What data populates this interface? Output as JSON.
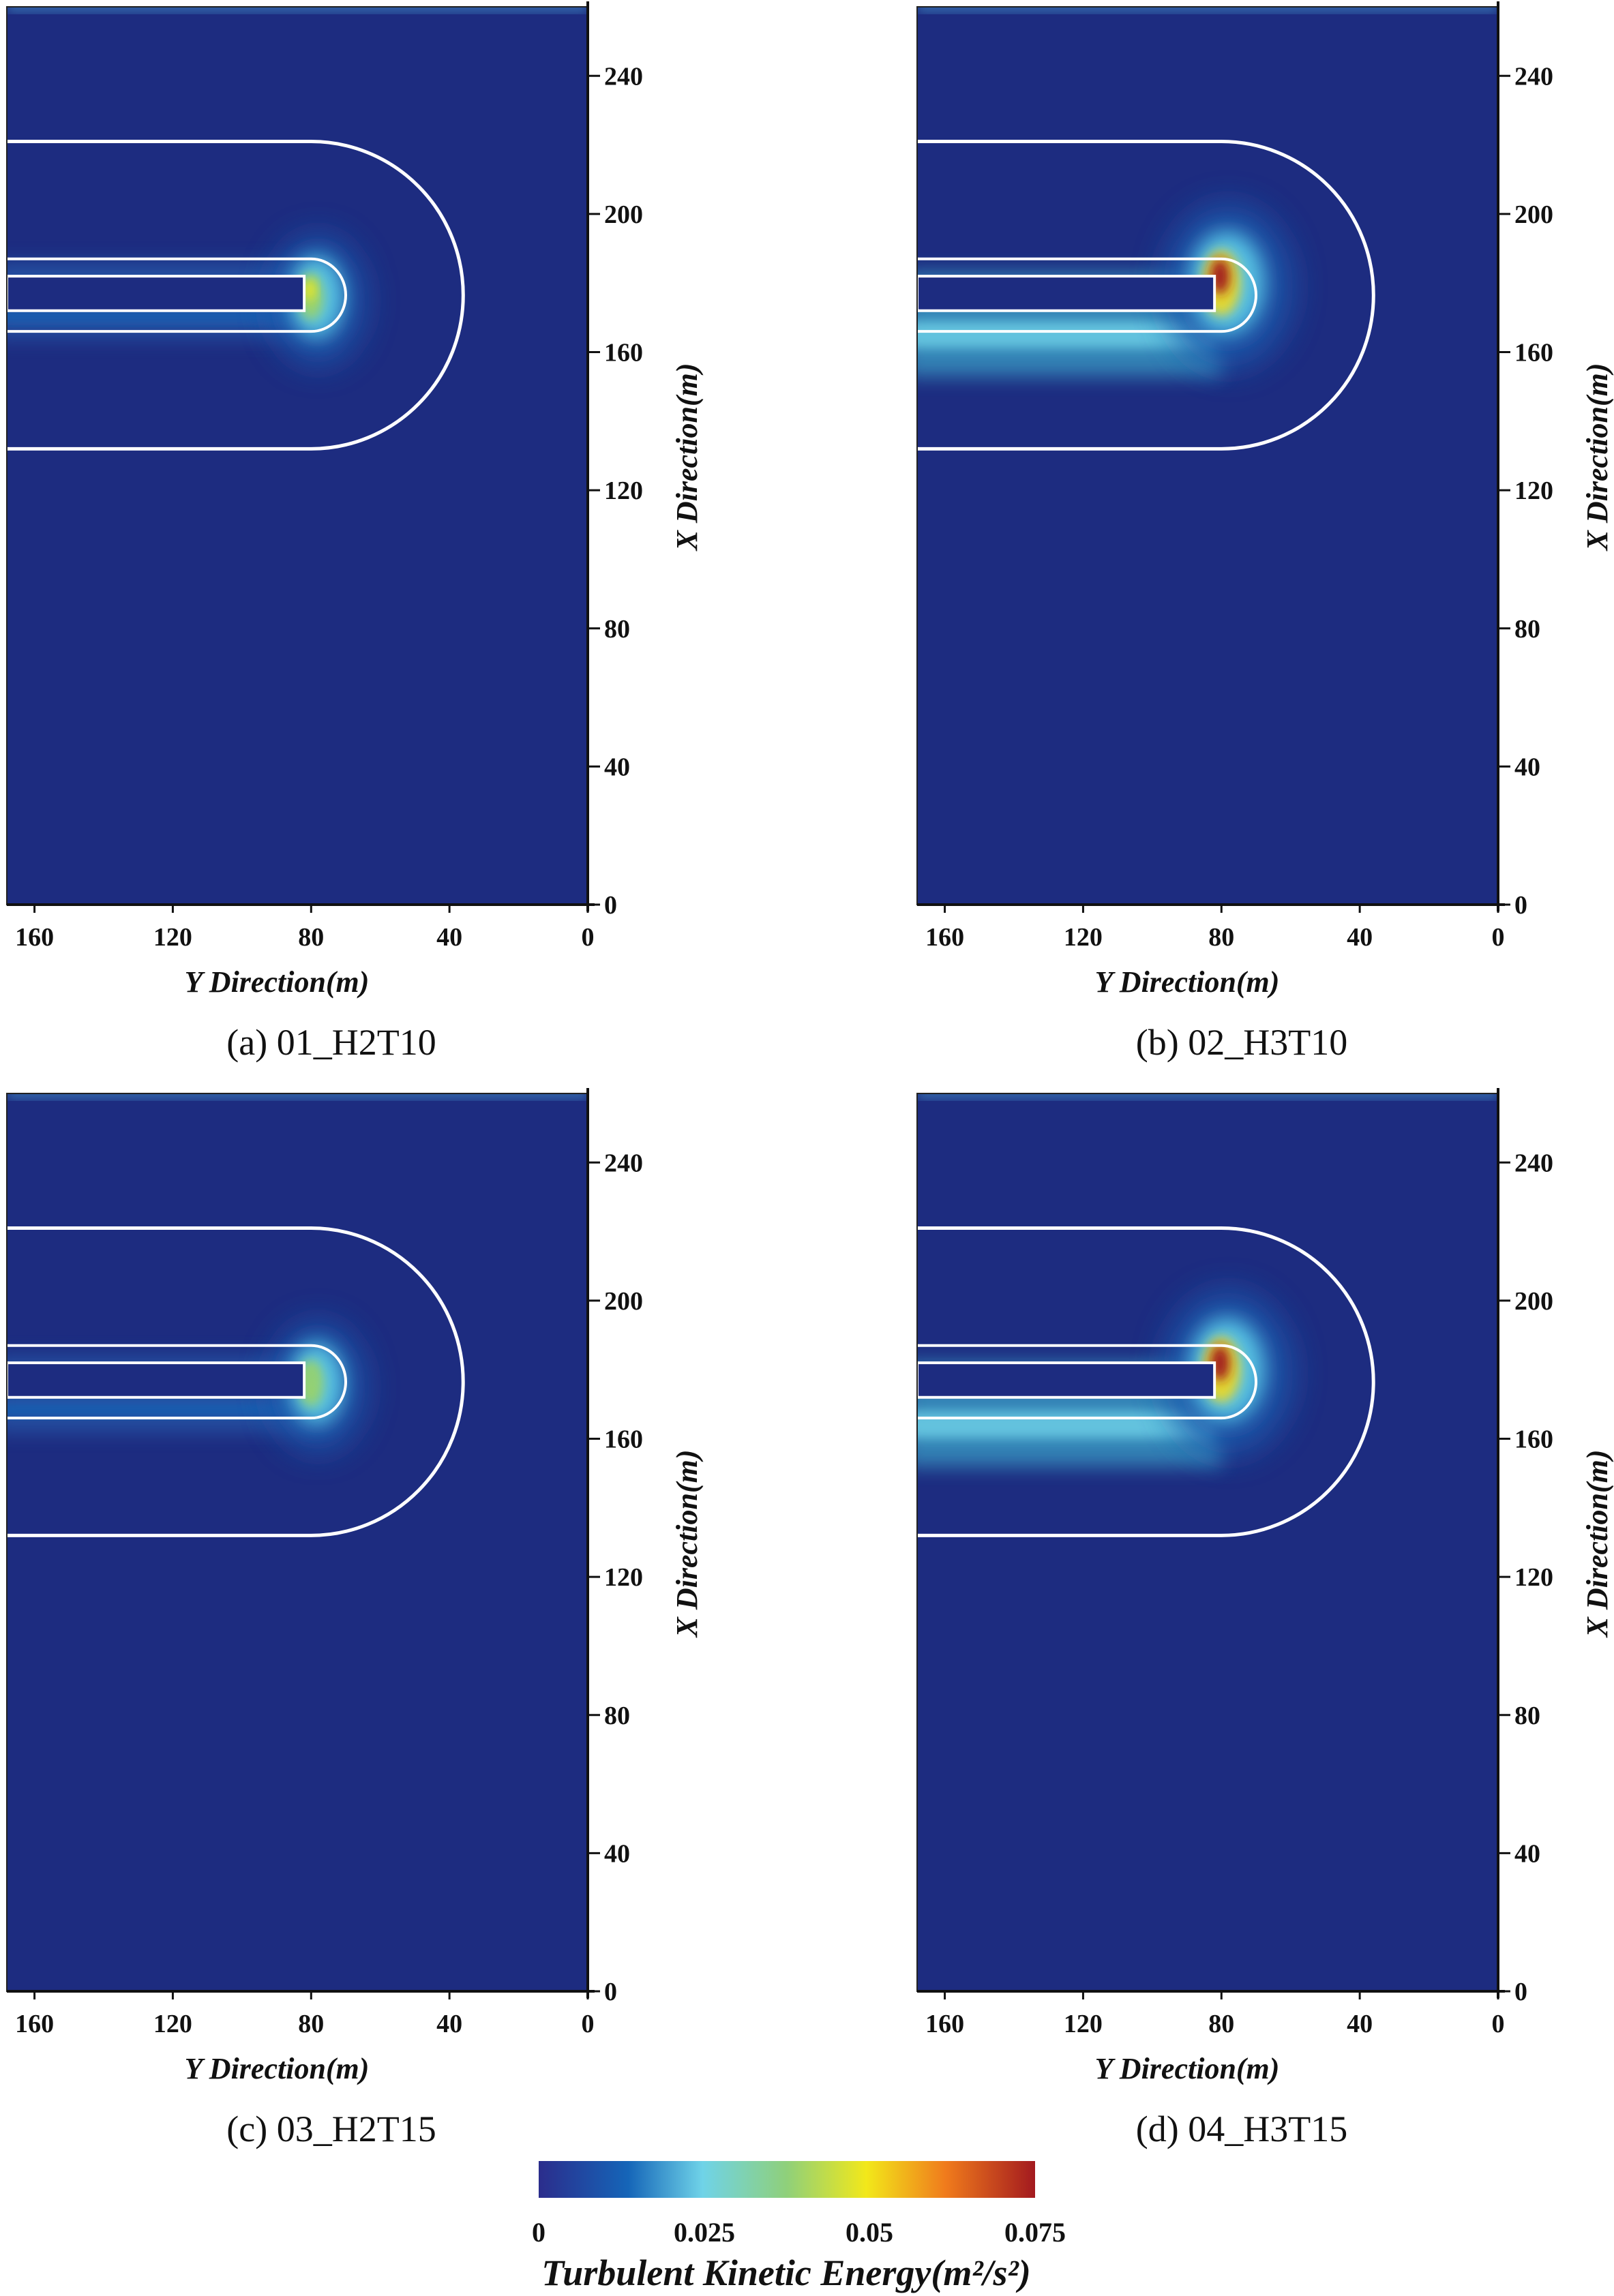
{
  "chart_data": [
    {
      "type": "heatmap",
      "panel": "a",
      "caption": "(a)  01_H2T10",
      "xlabel": "Y Direction(m)",
      "ylabel": "X Direction(m)",
      "x_ticks": [
        "160",
        "120",
        "80",
        "40",
        "0"
      ],
      "y_ticks": [
        "0",
        "40",
        "80",
        "120",
        "160",
        "200",
        "240"
      ],
      "xlim": [
        168,
        0
      ],
      "ylim": [
        0,
        260
      ],
      "max_tke": 0.06,
      "features": [
        {
          "name": "breakwater_head",
          "y": 80,
          "x": 178,
          "tke": 0.045
        },
        {
          "name": "breakwater_wake",
          "y_range": [
            168,
            82
          ],
          "x": 168,
          "tke": 0.012
        }
      ]
    },
    {
      "type": "heatmap",
      "panel": "b",
      "caption": "(b)  02_H3T10",
      "xlabel": "Y Direction(m)",
      "ylabel": "X Direction(m)",
      "x_ticks": [
        "160",
        "120",
        "80",
        "40",
        "0"
      ],
      "y_ticks": [
        "0",
        "40",
        "80",
        "120",
        "160",
        "200",
        "240"
      ],
      "xlim": [
        168,
        0
      ],
      "ylim": [
        0,
        260
      ],
      "max_tke": 0.075,
      "features": [
        {
          "name": "breakwater_head",
          "y": 80,
          "x": 182,
          "tke": 0.07
        },
        {
          "name": "breakwater_wake",
          "y_range": [
            168,
            82
          ],
          "x": 165,
          "tke": 0.03
        }
      ]
    },
    {
      "type": "heatmap",
      "panel": "c",
      "caption": "(c)  03_H2T15",
      "xlabel": "Y Direction(m)",
      "ylabel": "X Direction(m)",
      "x_ticks": [
        "160",
        "120",
        "80",
        "40",
        "0"
      ],
      "y_ticks": [
        "0",
        "40",
        "80",
        "120",
        "160",
        "200",
        "240"
      ],
      "xlim": [
        168,
        0
      ],
      "ylim": [
        0,
        260
      ],
      "max_tke": 0.055,
      "features": [
        {
          "name": "breakwater_head",
          "y": 80,
          "x": 178,
          "tke": 0.04
        },
        {
          "name": "breakwater_wake",
          "y_range": [
            168,
            82
          ],
          "x": 166,
          "tke": 0.012
        }
      ]
    },
    {
      "type": "heatmap",
      "panel": "d",
      "caption": "(d)  04_H3T15",
      "xlabel": "Y Direction(m)",
      "ylabel": "X Direction(m)",
      "x_ticks": [
        "160",
        "120",
        "80",
        "40",
        "0"
      ],
      "y_ticks": [
        "0",
        "40",
        "80",
        "120",
        "160",
        "200",
        "240"
      ],
      "xlim": [
        168,
        0
      ],
      "ylim": [
        0,
        260
      ],
      "max_tke": 0.075,
      "features": [
        {
          "name": "breakwater_head",
          "y": 80,
          "x": 182,
          "tke": 0.07
        },
        {
          "name": "breakwater_wake",
          "y_range": [
            168,
            82
          ],
          "x": 164,
          "tke": 0.022
        }
      ]
    }
  ],
  "colorbar": {
    "label": "Turbulent Kinetic Energy(m²/s²)",
    "ticks": [
      "0",
      "0.025",
      "0.05",
      "0.075"
    ],
    "range": [
      0,
      0.075
    ],
    "colors": [
      "#2b2d8c",
      "#1565b8",
      "#6fd3e8",
      "#8fd07a",
      "#f2e81a",
      "#f07b1c",
      "#a31a1f"
    ]
  },
  "background_color": "#1d2c80"
}
